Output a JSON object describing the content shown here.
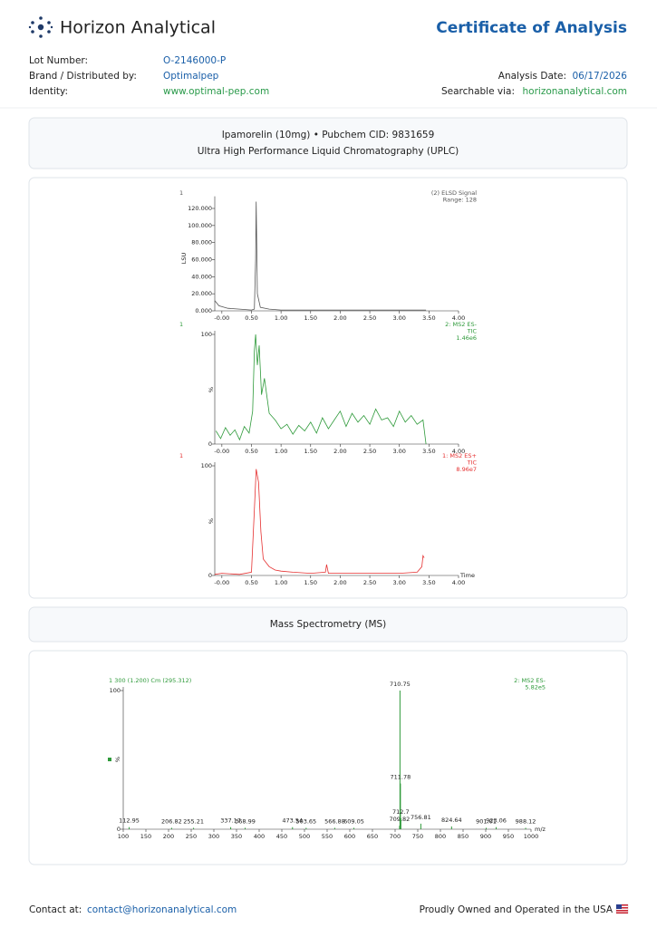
{
  "header": {
    "brand": "Horizon Analytical",
    "title": "Certificate of Analysis"
  },
  "details": {
    "lot_number": {
      "label": "Lot Number:",
      "value": "O-2146000-P"
    },
    "brand": {
      "label": "Brand / Distributed by:",
      "value": "Optimalpep"
    },
    "identity": {
      "label": "Identity:",
      "value": "www.optimal-pep.com"
    },
    "analysis_date": {
      "label": "Analysis Date:",
      "value": "06/17/2026"
    },
    "searchable": {
      "label": "Searchable via:",
      "value": "horizonanalytical.com"
    }
  },
  "uplc": {
    "compound": "Ipamorelin (10mg) • Pubchem CID: 9831659",
    "method": "Ultra High Performance Liquid Chromatography (UPLC)",
    "charts": [
      {
        "type": "line",
        "trace_label": "1",
        "annotations": [
          "(2) ELSD Signal",
          "Range: 128"
        ],
        "y_label": "LSU",
        "color": "#555555",
        "x": [
          -0.12,
          -0.05,
          0.1,
          0.3,
          0.5,
          0.55,
          0.57,
          0.58,
          0.6,
          0.65,
          0.8,
          1.0,
          2.0,
          3.0,
          3.45
        ],
        "y": [
          12,
          6,
          3,
          2,
          1,
          2,
          60,
          128,
          20,
          4,
          2,
          1,
          1,
          1,
          1
        ],
        "xlim": [
          -0.12,
          4
        ],
        "ylim": [
          0,
          130
        ],
        "xticks": [
          {
            "value": 0,
            "label": "-0.00"
          },
          {
            "value": 0.5,
            "label": "0.50"
          },
          {
            "value": 1,
            "label": "1.00"
          },
          {
            "value": 1.5,
            "label": "1.50"
          },
          {
            "value": 2,
            "label": "2.00"
          },
          {
            "value": 2.5,
            "label": "2.50"
          },
          {
            "value": 3,
            "label": "3.00"
          },
          {
            "value": 3.5,
            "label": "3.50"
          },
          {
            "value": 4,
            "label": "4.00"
          }
        ],
        "yticks": [
          {
            "value": 0,
            "label": "0.000"
          },
          {
            "value": 20,
            "label": "20.000"
          },
          {
            "value": 40,
            "label": "40.000"
          },
          {
            "value": 60,
            "label": "60.000"
          },
          {
            "value": 80,
            "label": "80.000"
          },
          {
            "value": 100,
            "label": "100.000"
          },
          {
            "value": 120,
            "label": "120.000"
          }
        ]
      },
      {
        "type": "line",
        "trace_label": "1",
        "annotations": [
          "2: MS2 ES-",
          "TIC",
          "1.46e6"
        ],
        "y_label": "%",
        "color": "#2e9a3a",
        "x": [
          -0.1,
          -0.02,
          0.06,
          0.14,
          0.22,
          0.3,
          0.38,
          0.46,
          0.52,
          0.55,
          0.57,
          0.6,
          0.63,
          0.67,
          0.72,
          0.8,
          0.9,
          1.0,
          1.1,
          1.2,
          1.3,
          1.4,
          1.5,
          1.6,
          1.7,
          1.8,
          1.9,
          2.0,
          2.1,
          2.2,
          2.3,
          2.4,
          2.5,
          2.6,
          2.7,
          2.8,
          2.9,
          3.0,
          3.1,
          3.2,
          3.3,
          3.4,
          3.45
        ],
        "y": [
          12,
          5,
          15,
          8,
          13,
          4,
          16,
          10,
          30,
          85,
          100,
          72,
          90,
          45,
          60,
          28,
          22,
          14,
          18,
          9,
          17,
          12,
          20,
          10,
          24,
          14,
          22,
          30,
          16,
          28,
          20,
          26,
          18,
          32,
          22,
          24,
          16,
          30,
          20,
          26,
          18,
          22,
          0
        ],
        "xlim": [
          -0.12,
          4
        ],
        "ylim": [
          0,
          100
        ],
        "xticks": [
          {
            "value": 0,
            "label": "-0.00"
          },
          {
            "value": 0.5,
            "label": "0.50"
          },
          {
            "value": 1,
            "label": "1.00"
          },
          {
            "value": 1.5,
            "label": "1.50"
          },
          {
            "value": 2,
            "label": "2.00"
          },
          {
            "value": 2.5,
            "label": "2.50"
          },
          {
            "value": 3,
            "label": "3.00"
          },
          {
            "value": 3.5,
            "label": "3.50"
          },
          {
            "value": 4,
            "label": "4.00"
          }
        ],
        "yticks": [
          0,
          100
        ]
      },
      {
        "type": "line",
        "trace_label": "1",
        "annotations": [
          "1: MS2 ES+",
          "TIC",
          "8.96e7"
        ],
        "y_label": "%",
        "x_label": "Time",
        "color": "#e53030",
        "x": [
          -0.12,
          0,
          0.3,
          0.5,
          0.55,
          0.58,
          0.62,
          0.66,
          0.7,
          0.8,
          0.9,
          1.0,
          1.2,
          1.5,
          1.75,
          1.77,
          1.8,
          2.0,
          2.5,
          3.0,
          3.3,
          3.38,
          3.4,
          3.42
        ],
        "y": [
          1,
          2,
          1,
          3,
          60,
          97,
          85,
          40,
          15,
          8,
          5,
          4,
          3,
          2,
          3,
          10,
          2,
          2,
          2,
          2,
          3,
          8,
          18,
          16
        ],
        "xlim": [
          -0.12,
          4
        ],
        "ylim": [
          0,
          100
        ],
        "xticks": [
          {
            "value": 0,
            "label": "-0.00"
          },
          {
            "value": 0.5,
            "label": "0.50"
          },
          {
            "value": 1,
            "label": "1.00"
          },
          {
            "value": 1.5,
            "label": "1.50"
          },
          {
            "value": 2,
            "label": "2.00"
          },
          {
            "value": 2.5,
            "label": "2.50"
          },
          {
            "value": 3,
            "label": "3.00"
          },
          {
            "value": 3.5,
            "label": "3.50"
          },
          {
            "value": 4,
            "label": "4.00"
          }
        ],
        "yticks": [
          0,
          100
        ]
      }
    ]
  },
  "ms": {
    "heading": "Mass Spectrometry (MS)",
    "chart": {
      "type": "stem",
      "trace_label": "1 300 (1.200) Cm (295.312)",
      "annotations": [
        "2: MS2 ES-",
        "5.82e5"
      ],
      "y_label": "%",
      "x_label": "m/z",
      "color": "#2e9a3a",
      "x": [
        112.95,
        206.82,
        255.21,
        337.17,
        368.99,
        473.54,
        503.65,
        566.88,
        609.05,
        709.82,
        710.75,
        711.78,
        712.7,
        756.81,
        824.64,
        901.01,
        923.06,
        988.12
      ],
      "y": [
        1.5,
        1,
        1,
        1.5,
        1,
        1.5,
        1,
        1,
        1,
        2.5,
        100,
        33,
        8,
        4,
        2,
        1,
        1.5,
        1
      ],
      "xlim": [
        100,
        1000
      ],
      "ylim": [
        0,
        100
      ],
      "xticks": [
        100,
        150,
        200,
        250,
        300,
        350,
        400,
        450,
        500,
        550,
        600,
        650,
        700,
        750,
        800,
        850,
        900,
        950,
        1000
      ],
      "yticks": [
        0,
        100
      ]
    }
  },
  "footer": {
    "contact_label": "Contact at:",
    "email": "contact@horizonanalytical.com",
    "tagline": "Proudly Owned and Operated in the USA"
  }
}
